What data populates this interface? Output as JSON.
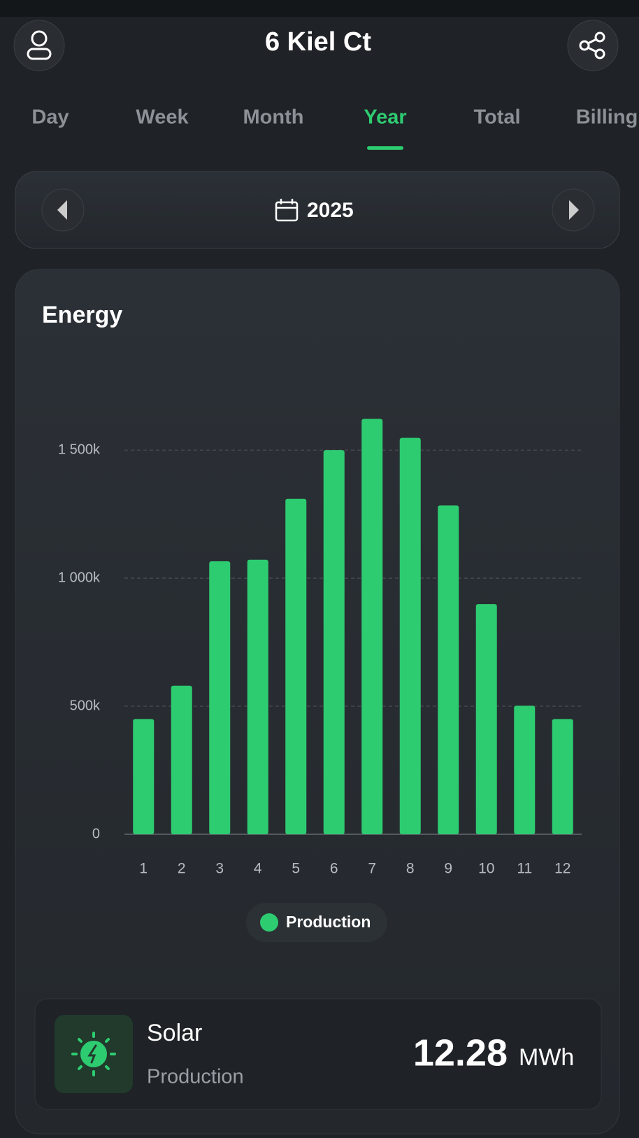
{
  "header": {
    "title": "6 Kiel Ct"
  },
  "tabs": [
    "Day",
    "Week",
    "Month",
    "Year",
    "Total",
    "Billing"
  ],
  "active_tab": "Year",
  "period": "2025",
  "card": {
    "title": "Energy"
  },
  "chart_data": {
    "type": "bar",
    "categories": [
      "1",
      "2",
      "3",
      "4",
      "5",
      "6",
      "7",
      "8",
      "9",
      "10",
      "11",
      "12"
    ],
    "series": [
      {
        "name": "Production",
        "color": "#2ecc71",
        "values": [
          450000,
          580000,
          1066000,
          1072000,
          1310000,
          1500000,
          1622000,
          1548000,
          1284000,
          899000,
          502000,
          450000
        ]
      }
    ],
    "ylim": [
      0,
      1700000
    ],
    "yticks": [
      0,
      {
        "value": 500000,
        "label": "500k"
      },
      {
        "value": 1000000,
        "label": "1 000k"
      },
      {
        "value": 1500000,
        "label": "1 500k"
      }
    ],
    "grid": true
  },
  "summary": {
    "label": "Solar",
    "sublabel": "Production",
    "value": 12.28,
    "unit": "MWh"
  }
}
